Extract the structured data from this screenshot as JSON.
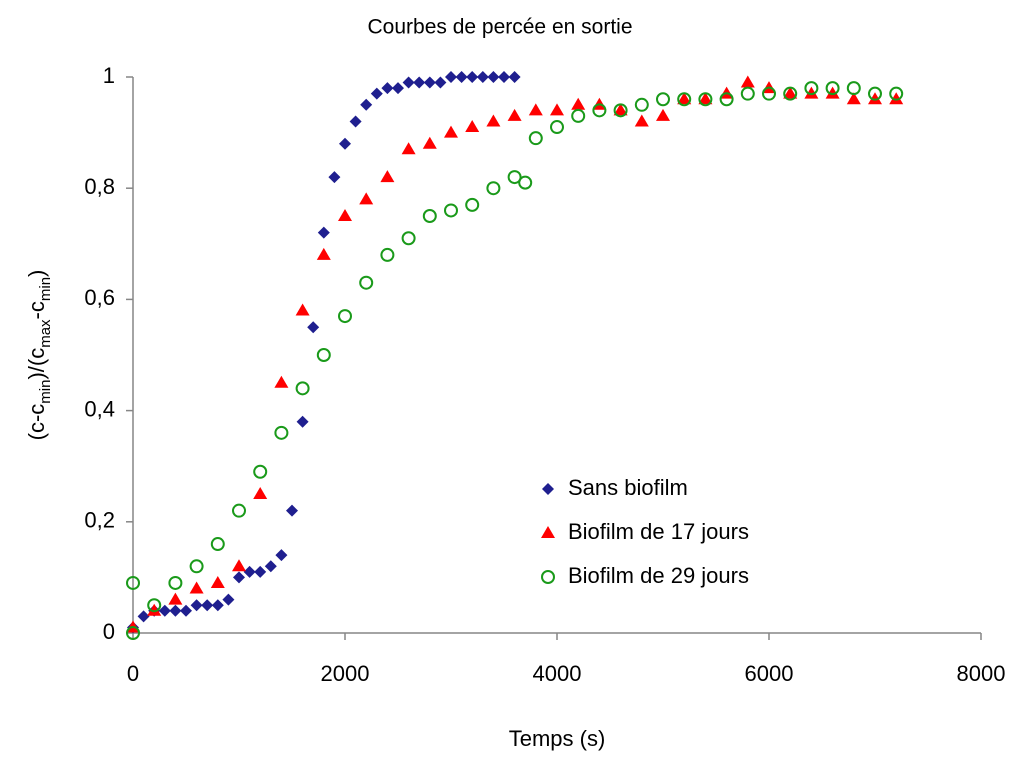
{
  "chart_data": {
    "type": "scatter",
    "title": "Courbes de percée en sortie",
    "xlabel": "Temps (s)",
    "ylabel": [
      {
        "text": "(c-c"
      },
      {
        "text": "min",
        "sub": true
      },
      {
        "text": ")/(c"
      },
      {
        "text": "max",
        "sub": true
      },
      {
        "text": "-c"
      },
      {
        "text": "min",
        "sub": true
      },
      {
        "text": ")"
      }
    ],
    "xlim": [
      0,
      8000
    ],
    "xticks": [
      0,
      2000,
      4000,
      6000,
      8000
    ],
    "ylim": [
      0,
      1
    ],
    "yticks": [
      0,
      {
        "value": 0.2,
        "label": "0,2"
      },
      {
        "value": 0.4,
        "label": "0,4"
      },
      {
        "value": 0.6,
        "label": "0,6"
      },
      {
        "value": 0.8,
        "label": "0,8"
      },
      1
    ],
    "grid": false,
    "legend": "lower right",
    "series": [
      {
        "name": "Sans biofilm",
        "color": "#1f1f8f",
        "marker": "diamond",
        "x": [
          0,
          100,
          200,
          300,
          400,
          500,
          600,
          700,
          800,
          900,
          1000,
          1100,
          1200,
          1300,
          1400,
          1500,
          1600,
          1700,
          1800,
          1900,
          2000,
          2100,
          2200,
          2300,
          2400,
          2500,
          2600,
          2700,
          2800,
          2900,
          3000,
          3100,
          3200,
          3300,
          3400,
          3500,
          3600
        ],
        "values": [
          0.01,
          0.03,
          0.04,
          0.04,
          0.04,
          0.04,
          0.05,
          0.05,
          0.05,
          0.06,
          0.1,
          0.11,
          0.11,
          0.12,
          0.14,
          0.22,
          0.38,
          0.55,
          0.72,
          0.82,
          0.88,
          0.92,
          0.95,
          0.97,
          0.98,
          0.98,
          0.99,
          0.99,
          0.99,
          0.99,
          1.0,
          1.0,
          1.0,
          1.0,
          1.0,
          1.0,
          1.0
        ]
      },
      {
        "name": " Biofilm de 17 jours",
        "color": "#ff0000",
        "marker": "triangle",
        "x": [
          0,
          200,
          400,
          600,
          800,
          1000,
          1200,
          1400,
          1600,
          1800,
          2000,
          2200,
          2400,
          2600,
          2800,
          3000,
          3200,
          3400,
          3600,
          3800,
          4000,
          4200,
          4400,
          4600,
          4800,
          5000,
          5200,
          5400,
          5600,
          5800,
          6000,
          6200,
          6400,
          6600,
          6800,
          7000,
          7200
        ],
        "values": [
          0.01,
          0.04,
          0.06,
          0.08,
          0.09,
          0.12,
          0.25,
          0.45,
          0.58,
          0.68,
          0.75,
          0.78,
          0.82,
          0.87,
          0.88,
          0.9,
          0.91,
          0.92,
          0.93,
          0.94,
          0.94,
          0.95,
          0.95,
          0.94,
          0.92,
          0.93,
          0.96,
          0.96,
          0.97,
          0.99,
          0.98,
          0.97,
          0.97,
          0.97,
          0.96,
          0.96,
          0.96
        ]
      },
      {
        "name": "Biofilm de 29 jours",
        "color": "#1a9a1a",
        "marker": "circle",
        "x": [
          0,
          0,
          200,
          400,
          600,
          800,
          1000,
          1200,
          1400,
          1600,
          1800,
          2000,
          2200,
          2400,
          2600,
          2800,
          3000,
          3200,
          3400,
          3600,
          3700,
          3800,
          4000,
          4200,
          4400,
          4600,
          4800,
          5000,
          5200,
          5400,
          5600,
          5800,
          6000,
          6200,
          6400,
          6600,
          6800,
          7000,
          7200
        ],
        "values": [
          0.09,
          0.0,
          0.05,
          0.09,
          0.12,
          0.16,
          0.22,
          0.29,
          0.36,
          0.44,
          0.5,
          0.57,
          0.63,
          0.68,
          0.71,
          0.75,
          0.76,
          0.77,
          0.8,
          0.82,
          0.81,
          0.89,
          0.91,
          0.93,
          0.94,
          0.94,
          0.95,
          0.96,
          0.96,
          0.96,
          0.96,
          0.97,
          0.97,
          0.97,
          0.98,
          0.98,
          0.98,
          0.97,
          0.97
        ]
      }
    ]
  }
}
